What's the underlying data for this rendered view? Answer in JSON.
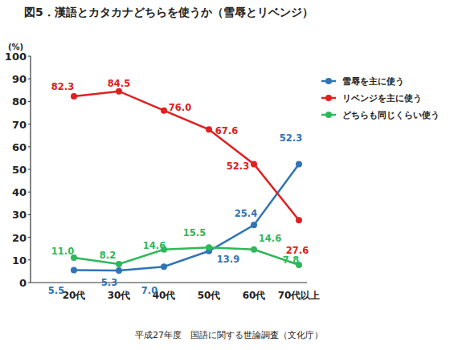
{
  "chart_data": {
    "type": "line",
    "title": "図5．漢語とカタカナどちらを使うか（雪辱とリベンジ）",
    "y_label": "(%)",
    "source": "平成27年度　国語に関する世論調査（文化庁）",
    "categories": [
      "20代",
      "30代",
      "40代",
      "50代",
      "60代",
      "70代以上"
    ],
    "series": [
      {
        "name": "雪辱を主に使う",
        "color": "#2e75b6",
        "values": [
          5.5,
          5.3,
          7.0,
          13.9,
          25.4,
          52.3
        ],
        "value_labels": [
          "5.5",
          "5.3",
          "7.0",
          "13.9",
          "25.4",
          "52.3"
        ]
      },
      {
        "name": "リベンジを主に使う",
        "color": "#e02020",
        "values": [
          82.3,
          84.5,
          76.0,
          67.6,
          52.3,
          27.6
        ],
        "value_labels": [
          "82.3",
          "84.5",
          "76.0",
          "67.6",
          "52.3",
          "27.6"
        ]
      },
      {
        "name": "どちらも同じくらい使う",
        "color": "#2eb85c",
        "values": [
          11.0,
          8.2,
          14.6,
          15.5,
          14.6,
          7.8
        ],
        "value_labels": [
          "11.0",
          "8.2",
          "14.6",
          "15.5",
          "14.6",
          "7.8"
        ]
      }
    ],
    "ylim": [
      0,
      100
    ],
    "yticks": [
      0,
      10,
      20,
      30,
      40,
      50,
      60,
      70,
      80,
      90,
      100
    ],
    "grid": false,
    "legend": "right",
    "data_labels": true,
    "marker": "circle",
    "line_style": "solid"
  }
}
